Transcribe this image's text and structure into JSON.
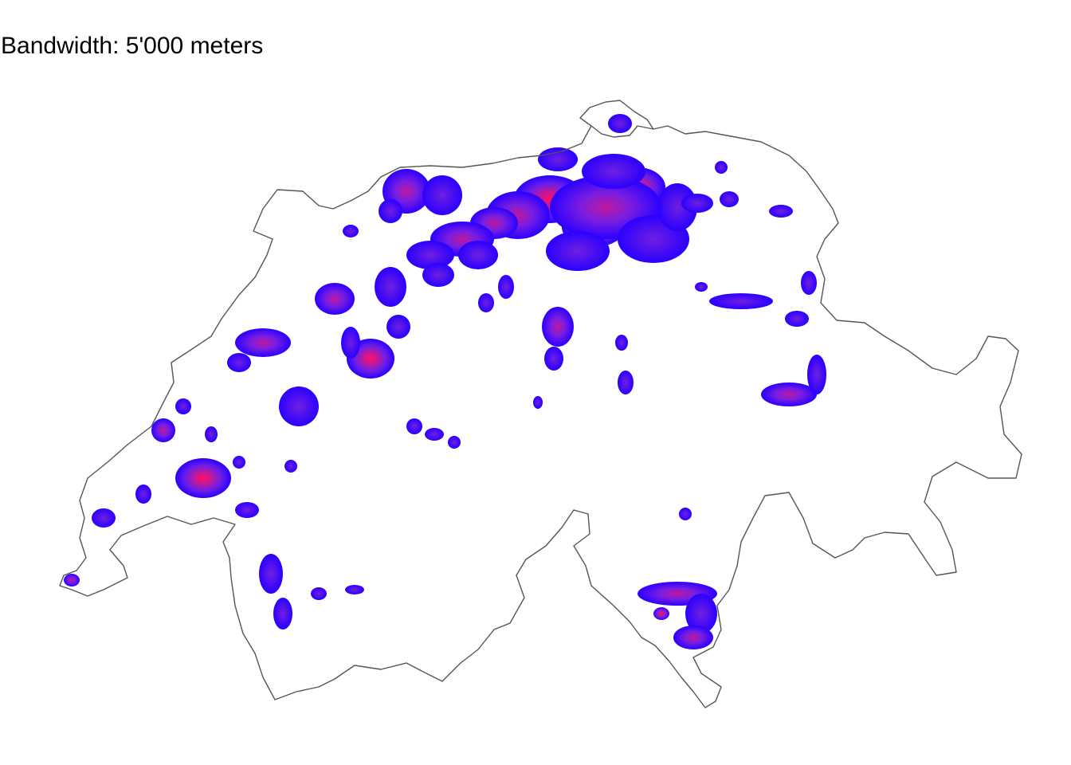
{
  "title": "Bandwidth: 5'000 meters",
  "colors": {
    "background": "#ffffff",
    "border": "#555555",
    "density_low": "#2200ff",
    "density_mid": "#9a1ee0",
    "density_high": "#ff1060"
  }
}
